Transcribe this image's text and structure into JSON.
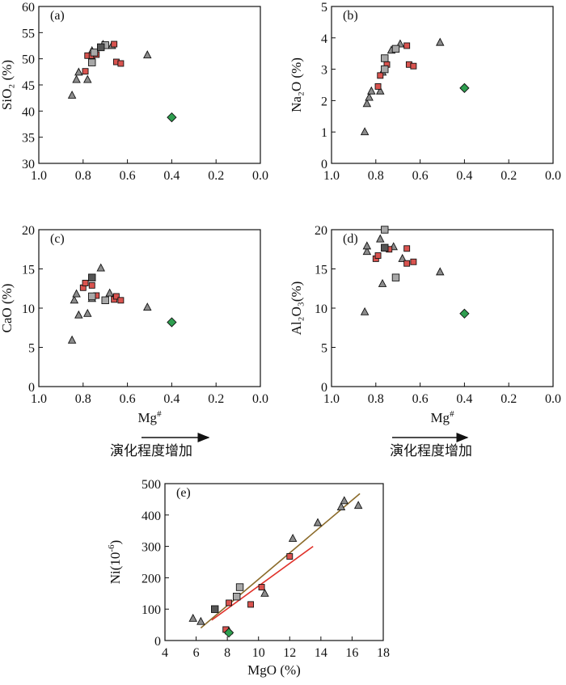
{
  "marker_colors": {
    "red_square": "#d9534f",
    "gray_square": "#a8a8a8",
    "dark_square": "#555555",
    "triangle": "#8c8c8c",
    "diamond": "#2e9e4f",
    "line_brown": "#8b6b2a",
    "line_red": "#e0322a"
  },
  "chart_data": [
    {
      "type": "scatter",
      "label": "(a)",
      "ylabel": "SiO₂ (%)",
      "xlabel": "",
      "xlim": [
        1.0,
        0.0
      ],
      "ylim": [
        30,
        60
      ],
      "xticks": [
        "1.0",
        "0.8",
        "0.6",
        "0.4",
        "0.2",
        "0.0"
      ],
      "yticks": [
        "30",
        "35",
        "40",
        "45",
        "50",
        "55",
        "60"
      ],
      "series": [
        {
          "marker": "triangle",
          "points": [
            [
              0.85,
              43.0
            ],
            [
              0.83,
              46.0
            ],
            [
              0.82,
              47.4
            ],
            [
              0.78,
              46.0
            ],
            [
              0.76,
              51.5
            ],
            [
              0.71,
              52.7
            ],
            [
              0.67,
              52.5
            ],
            [
              0.51,
              50.7
            ]
          ]
        },
        {
          "marker": "red_square",
          "points": [
            [
              0.79,
              47.6
            ],
            [
              0.78,
              50.6
            ],
            [
              0.76,
              50.6
            ],
            [
              0.74,
              50.8
            ],
            [
              0.66,
              52.8
            ],
            [
              0.65,
              49.4
            ],
            [
              0.63,
              49.1
            ]
          ]
        },
        {
          "marker": "gray_square",
          "points": [
            [
              0.76,
              49.3
            ],
            [
              0.75,
              51.2
            ],
            [
              0.7,
              52.6
            ]
          ]
        },
        {
          "marker": "dark_square",
          "points": [
            [
              0.72,
              52.2
            ]
          ]
        },
        {
          "marker": "diamond",
          "points": [
            [
              0.4,
              38.8
            ]
          ]
        }
      ]
    },
    {
      "type": "scatter",
      "label": "(b)",
      "ylabel": "Na₂O (%)",
      "xlabel": "",
      "xlim": [
        1.0,
        0.0
      ],
      "ylim": [
        0,
        5
      ],
      "xticks": [
        "1.0",
        "0.8",
        "0.6",
        "0.4",
        "0.2",
        "0.0"
      ],
      "yticks": [
        "0",
        "1",
        "2",
        "3",
        "4",
        "5"
      ],
      "series": [
        {
          "marker": "triangle",
          "points": [
            [
              0.85,
              1.0
            ],
            [
              0.84,
              1.9
            ],
            [
              0.83,
              2.1
            ],
            [
              0.82,
              2.3
            ],
            [
              0.78,
              2.3
            ],
            [
              0.77,
              2.9
            ],
            [
              0.73,
              3.6
            ],
            [
              0.69,
              3.8
            ],
            [
              0.51,
              3.85
            ]
          ]
        },
        {
          "marker": "red_square",
          "points": [
            [
              0.79,
              2.45
            ],
            [
              0.78,
              2.8
            ],
            [
              0.75,
              3.15
            ],
            [
              0.66,
              3.75
            ],
            [
              0.65,
              3.15
            ],
            [
              0.63,
              3.1
            ]
          ]
        },
        {
          "marker": "gray_square",
          "points": [
            [
              0.76,
              3.0
            ],
            [
              0.76,
              3.35
            ],
            [
              0.71,
              3.65
            ]
          ]
        },
        {
          "marker": "diamond",
          "points": [
            [
              0.4,
              2.4
            ]
          ]
        }
      ]
    },
    {
      "type": "scatter",
      "label": "(c)",
      "ylabel": "CaO (%)",
      "xlabel": "Mg#",
      "xlim": [
        1.0,
        0.0
      ],
      "ylim": [
        0,
        20
      ],
      "xticks": [
        "1.0",
        "0.8",
        "0.6",
        "0.4",
        "0.2",
        "0.0"
      ],
      "yticks": [
        "0",
        "5",
        "10",
        "15",
        "20"
      ],
      "series": [
        {
          "marker": "triangle",
          "points": [
            [
              0.85,
              5.9
            ],
            [
              0.84,
              11.0
            ],
            [
              0.83,
              11.8
            ],
            [
              0.82,
              9.1
            ],
            [
              0.78,
              9.3
            ],
            [
              0.76,
              11.2
            ],
            [
              0.72,
              15.1
            ],
            [
              0.68,
              11.9
            ],
            [
              0.51,
              10.1
            ]
          ]
        },
        {
          "marker": "red_square",
          "points": [
            [
              0.8,
              12.6
            ],
            [
              0.79,
              13.2
            ],
            [
              0.76,
              12.9
            ],
            [
              0.74,
              11.6
            ],
            [
              0.66,
              11.1
            ],
            [
              0.65,
              11.5
            ],
            [
              0.63,
              11.0
            ]
          ]
        },
        {
          "marker": "gray_square",
          "points": [
            [
              0.76,
              11.5
            ],
            [
              0.7,
              11.0
            ]
          ]
        },
        {
          "marker": "dark_square",
          "points": [
            [
              0.76,
              13.9
            ]
          ]
        },
        {
          "marker": "diamond",
          "points": [
            [
              0.4,
              8.2
            ]
          ]
        }
      ]
    },
    {
      "type": "scatter",
      "label": "(d)",
      "ylabel": "Al₂O₃(%)",
      "xlabel": "Mg#",
      "xlim": [
        1.0,
        0.0
      ],
      "ylim": [
        0,
        20
      ],
      "xticks": [
        "1.0",
        "0.8",
        "0.6",
        "0.4",
        "0.2",
        "0.0"
      ],
      "yticks": [
        "0",
        "5",
        "10",
        "15",
        "20"
      ],
      "series": [
        {
          "marker": "triangle",
          "points": [
            [
              0.85,
              9.5
            ],
            [
              0.84,
              17.2
            ],
            [
              0.84,
              17.9
            ],
            [
              0.78,
              18.8
            ],
            [
              0.77,
              13.1
            ],
            [
              0.72,
              17.8
            ],
            [
              0.68,
              16.3
            ],
            [
              0.51,
              14.6
            ]
          ]
        },
        {
          "marker": "red_square",
          "points": [
            [
              0.8,
              16.3
            ],
            [
              0.79,
              16.7
            ],
            [
              0.74,
              17.5
            ],
            [
              0.66,
              17.6
            ],
            [
              0.66,
              15.7
            ],
            [
              0.63,
              15.9
            ]
          ]
        },
        {
          "marker": "gray_square",
          "points": [
            [
              0.76,
              20.0
            ],
            [
              0.71,
              13.9
            ]
          ]
        },
        {
          "marker": "dark_square",
          "points": [
            [
              0.76,
              17.7
            ]
          ]
        },
        {
          "marker": "diamond",
          "points": [
            [
              0.4,
              9.3
            ]
          ]
        }
      ]
    },
    {
      "type": "scatter",
      "label": "(e)",
      "ylabel": "Ni(10⁻⁶)",
      "xlabel": "MgO (%)",
      "xlim": [
        4,
        18
      ],
      "ylim": [
        0,
        500
      ],
      "xticks": [
        "4",
        "6",
        "8",
        "10",
        "12",
        "14",
        "16",
        "18"
      ],
      "yticks": [
        "0",
        "100",
        "200",
        "300",
        "400",
        "500"
      ],
      "series": [
        {
          "marker": "triangle",
          "points": [
            [
              5.8,
              70
            ],
            [
              6.3,
              60
            ],
            [
              8.1,
              30
            ],
            [
              10.4,
              150
            ],
            [
              12.2,
              325
            ],
            [
              13.8,
              375
            ],
            [
              15.3,
              425
            ],
            [
              15.5,
              445
            ],
            [
              16.4,
              430
            ]
          ]
        },
        {
          "marker": "red_square",
          "points": [
            [
              7.9,
              35
            ],
            [
              8.1,
              120
            ],
            [
              9.5,
              115
            ],
            [
              10.2,
              170
            ],
            [
              12.0,
              268
            ]
          ]
        },
        {
          "marker": "gray_square",
          "points": [
            [
              8.6,
              140
            ],
            [
              8.8,
              170
            ]
          ]
        },
        {
          "marker": "dark_square",
          "points": [
            [
              7.2,
              100
            ]
          ]
        },
        {
          "marker": "diamond",
          "points": [
            [
              8.1,
              25
            ]
          ]
        }
      ],
      "trend_lines": [
        {
          "color": "line_brown",
          "x": [
            6.3,
            16.5
          ],
          "y": [
            40,
            468
          ]
        },
        {
          "color": "line_red",
          "x": [
            7.0,
            13.5
          ],
          "y": [
            65,
            300
          ]
        }
      ]
    }
  ],
  "evolution_label": "演化程度增加"
}
